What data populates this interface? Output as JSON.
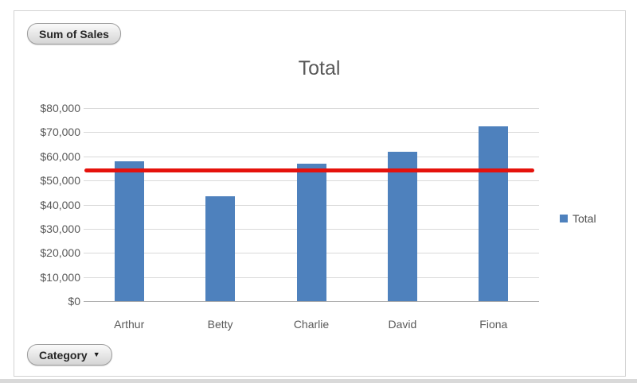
{
  "pivot_controls": {
    "field_button": "Sum of Sales",
    "axis_button": "Category",
    "axis_caret_icon": "▼"
  },
  "legend": {
    "label": "Total"
  },
  "colors": {
    "bar": "#4e81bd",
    "target_red": "#e5120c",
    "text_gray": "#595959"
  },
  "chart_data": {
    "type": "bar",
    "title": "Total",
    "categories": [
      "Arthur",
      "Betty",
      "Charlie",
      "David",
      "Fiona"
    ],
    "series": [
      {
        "name": "Total",
        "values": [
          58000,
          43500,
          57000,
          62000,
          72500
        ]
      }
    ],
    "target_line": {
      "value": 54000
    },
    "y_ticks": [
      "$80,000",
      "$70,000",
      "$60,000",
      "$50,000",
      "$40,000",
      "$30,000",
      "$20,000",
      "$10,000",
      "$0"
    ],
    "ylim": [
      0,
      80000
    ],
    "grid": true,
    "legend_position": "right"
  }
}
